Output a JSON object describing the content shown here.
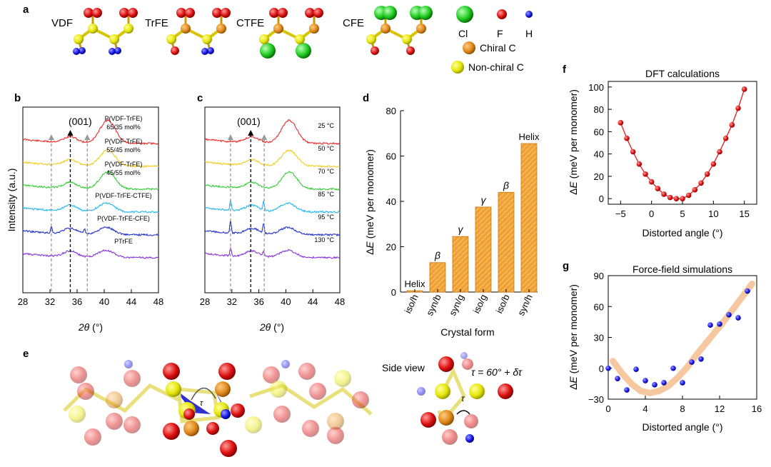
{
  "panel_labels": {
    "a": "a",
    "b": "b",
    "c": "c",
    "d": "d",
    "e": "e",
    "f": "f",
    "g": "g"
  },
  "panel_a": {
    "molecules": [
      "VDF",
      "TrFE",
      "CTFE",
      "CFE"
    ],
    "legend": {
      "cl": "Cl",
      "f": "F",
      "h": "H",
      "chiral": "Chiral C",
      "nonchiral": "Non-chiral C"
    },
    "colors": {
      "cl": "#22cc22",
      "f": "#dd1111",
      "h": "#1a1aee",
      "chiral": "#e08a1e",
      "nonchiral": "#e6e60a"
    }
  },
  "panel_e": {
    "side_view": "Side view",
    "tau_eq": "τ = 60° + δτ",
    "tau": "τ"
  },
  "chart_data": [
    {
      "id": "b",
      "type": "line",
      "xlabel": "2θ (°)",
      "ylabel": "Intensity (a.u.)",
      "xlim": [
        28,
        48
      ],
      "xticks": [
        "28",
        "32",
        "36",
        "40",
        "44",
        "48"
      ],
      "peak_label": "(001)",
      "markers_x": [
        32.2,
        35.0,
        37.5
      ],
      "series": [
        {
          "name": "P(VDF-TrFE) 65/35 mol%",
          "lines": [
            "P(VDF-TrFE)",
            "65/35 mol%"
          ],
          "color": "#ee2a2a"
        },
        {
          "name": "P(VDF-TrFE) 55/45 mol%",
          "lines": [
            "P(VDF-TrFE)",
            "55/45 mol%"
          ],
          "color": "#f2cc22"
        },
        {
          "name": "P(VDF-TrFE) 45/55 mol%",
          "lines": [
            "P(VDF-TrFE)",
            "45/55 mol%"
          ],
          "color": "#33cc33"
        },
        {
          "name": "P(VDF-TrFE-CTFE)",
          "lines": [
            "P(VDF-TrFE-CTFE)"
          ],
          "color": "#22b8ee"
        },
        {
          "name": "P(VDF-TrFE-CFE)",
          "lines": [
            "P(VDF-TrFE-CFE)"
          ],
          "color": "#2233cc"
        },
        {
          "name": "PTrFE",
          "lines": [
            "PTrFE"
          ],
          "color": "#8833dd"
        }
      ]
    },
    {
      "id": "c",
      "type": "line",
      "xlabel": "2θ (°)",
      "xlim": [
        28,
        48
      ],
      "xticks": [
        "28",
        "32",
        "36",
        "40",
        "44",
        "48"
      ],
      "peak_label": "(001)",
      "markers_x": [
        31.8,
        34.8,
        36.8
      ],
      "series": [
        {
          "name": "25 °C",
          "color": "#ee2a2a"
        },
        {
          "name": "50 °C",
          "color": "#f2cc22"
        },
        {
          "name": "70 °C",
          "color": "#33cc33"
        },
        {
          "name": "85 °C",
          "color": "#22b8ee"
        },
        {
          "name": "95 °C",
          "color": "#2233cc"
        },
        {
          "name": "130 °C",
          "color": "#8833dd"
        }
      ]
    },
    {
      "id": "d",
      "type": "bar",
      "title": "",
      "xlabel": "Crystal form",
      "ylabel": "ΔE (meV per monomer)",
      "ylim": [
        0,
        80
      ],
      "yticks": [
        "0",
        "20",
        "40",
        "60",
        "80"
      ],
      "categories": [
        "iso/h",
        "syn/b",
        "syn/g",
        "iso/g",
        "iso/b",
        "syn/h"
      ],
      "values": [
        0.6,
        13,
        24.5,
        37.5,
        44,
        65.5
      ],
      "bar_labels": [
        "Helix",
        "β",
        "γ",
        "γ",
        "β",
        "Helix"
      ],
      "color": "#f0a030"
    },
    {
      "id": "f",
      "type": "line",
      "title": "DFT calculations",
      "xlabel": "Distorted angle (°)",
      "ylabel": "ΔE (meV per monomer)",
      "xlim": [
        -7,
        17
      ],
      "ylim": [
        -5,
        105
      ],
      "xticks": [
        "−5",
        "0",
        "5",
        "10",
        "15"
      ],
      "yticks": [
        "0",
        "20",
        "40",
        "60",
        "80",
        "100"
      ],
      "x": [
        -5,
        -4,
        -3,
        -2,
        -1,
        0,
        1,
        2,
        3,
        4,
        5,
        6,
        7,
        8,
        9,
        10,
        11,
        12,
        13,
        14,
        15
      ],
      "y": [
        68,
        54,
        42,
        31,
        22,
        15,
        9,
        4,
        1,
        0,
        0,
        3,
        8,
        14,
        22,
        31,
        42,
        54,
        66,
        81,
        98
      ],
      "color": "#e21a1a"
    },
    {
      "id": "g",
      "type": "scatter",
      "title": "Force-field simulations",
      "xlabel": "Distorted angle (°)",
      "ylabel": "ΔE (meV per monomer)",
      "xlim": [
        0,
        16
      ],
      "ylim": [
        -30,
        90
      ],
      "xticks": [
        "0",
        "4",
        "8",
        "12",
        "16"
      ],
      "yticks": [
        "−30",
        "0",
        "30",
        "60",
        "90"
      ],
      "x": [
        0,
        1,
        2,
        3,
        4,
        5,
        6,
        7,
        8,
        9,
        10,
        11,
        12,
        13,
        14,
        15
      ],
      "y": [
        0,
        -10,
        -21,
        -1,
        -12,
        -16,
        -14,
        0,
        -14,
        6,
        9,
        42,
        43,
        52,
        49,
        75
      ],
      "fit_x": [
        0.5,
        1.5,
        2.5,
        3.5,
        4.5,
        5.5,
        6.5,
        7.5,
        8.5,
        9.5,
        10.5,
        11.5,
        12.5,
        13.5,
        14.5,
        15.5
      ],
      "fit_y": [
        7,
        -5,
        -15,
        -22,
        -24,
        -22,
        -17,
        -9,
        1,
        13,
        24,
        35,
        46,
        58,
        70,
        82
      ],
      "color": "#1a1aee",
      "fit_color": "#f5c8a0"
    }
  ]
}
